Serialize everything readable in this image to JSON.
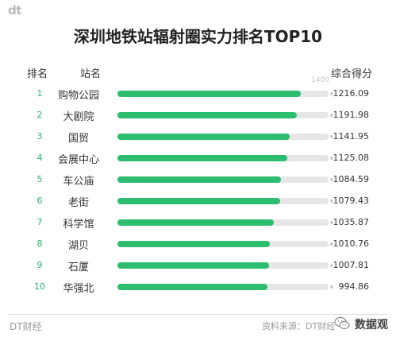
{
  "logo": "dt",
  "title": "深圳地铁站辐射圈实力排名TOP10",
  "headers": {
    "rank": "排名",
    "station": "站名",
    "score": "综合得分"
  },
  "max_marker": "1400",
  "chart_data": {
    "type": "bar",
    "orientation": "horizontal",
    "title": "深圳地铁站辐射圈实力排名TOP10",
    "xlim": [
      0,
      1400
    ],
    "ranks": [
      "1",
      "2",
      "3",
      "4",
      "5",
      "6",
      "7",
      "8",
      "9",
      "10"
    ],
    "categories": [
      "购物公园",
      "大剧院",
      "国贸",
      "会展中心",
      "车公庙",
      "老街",
      "科学馆",
      "湖贝",
      "石厦",
      "华强北"
    ],
    "values": [
      1216.09,
      1191.98,
      1141.95,
      1125.08,
      1084.59,
      1079.43,
      1035.87,
      1010.76,
      1007.81,
      994.86
    ],
    "value_labels": [
      "1216.09",
      "1191.98",
      "1141.95",
      "1125.08",
      "1084.59",
      "1079.43",
      "1035.87",
      "1010.76",
      "1007.81",
      "994.86"
    ],
    "bar_color": "#2dbd6e",
    "track_color": "#e6e6e6",
    "rank_color": "#2db46a"
  },
  "footer": {
    "left": "DT财经",
    "right": "资料来源：DT财经",
    "watermark": "数据观"
  }
}
